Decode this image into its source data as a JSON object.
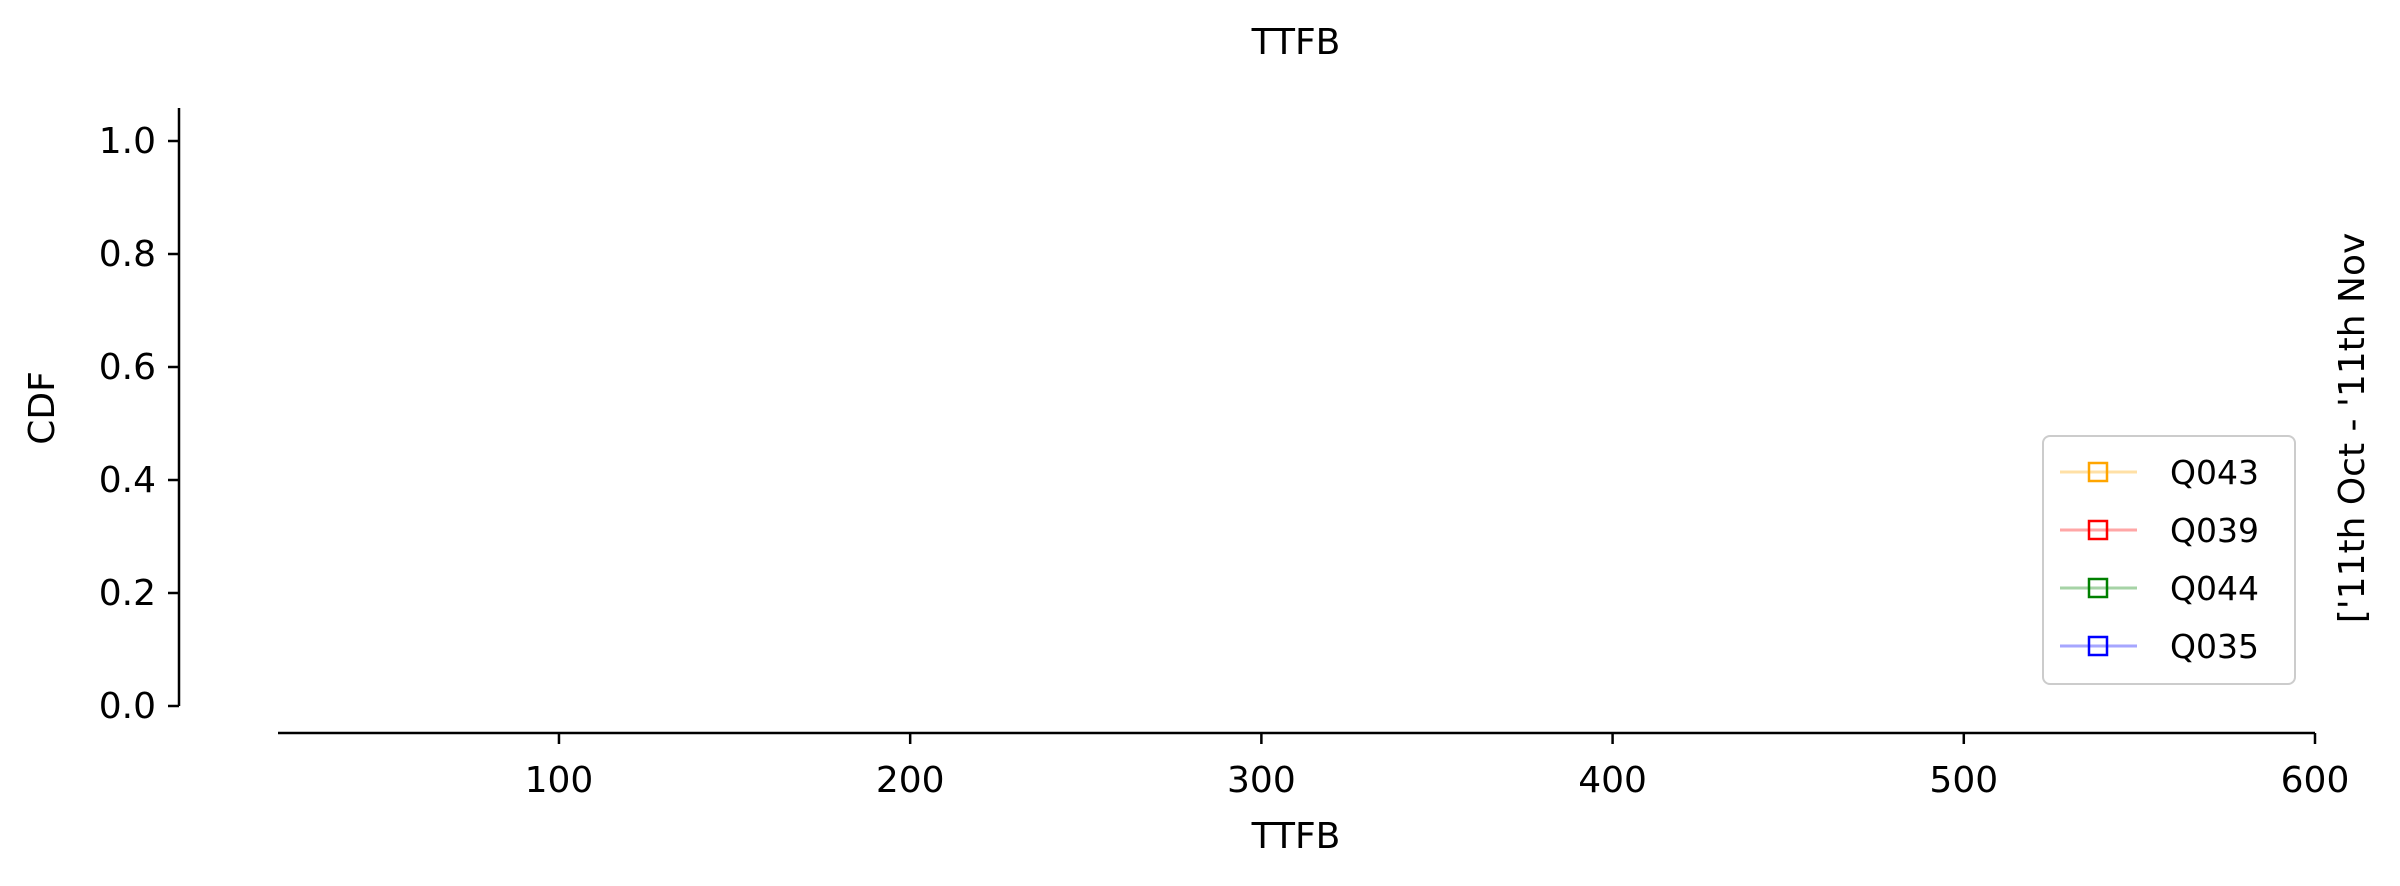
{
  "chart_data": {
    "type": "line",
    "title": "TTFB",
    "xlabel": "TTFB",
    "ylabel": "CDF",
    "right_label": "['11th Oct - '11th Nov",
    "xlim": [
      20,
      600
    ],
    "ylim": [
      0.0,
      1.0
    ],
    "x_ticks": [
      100,
      200,
      300,
      400,
      500,
      600
    ],
    "y_ticks": [
      0.0,
      0.2,
      0.4,
      0.6,
      0.8,
      1.0
    ],
    "x_tick_labels": [
      "100",
      "200",
      "300",
      "400",
      "500",
      "600"
    ],
    "y_tick_labels": [
      "0.0",
      "0.2",
      "0.4",
      "0.6",
      "0.8",
      "1.0"
    ],
    "grid": false,
    "legend_position": "lower-right",
    "marker": "square",
    "series": [
      {
        "name": "Q043",
        "color": "#ffa500",
        "values": []
      },
      {
        "name": "Q039",
        "color": "#ff0000",
        "values": []
      },
      {
        "name": "Q044",
        "color": "#008000",
        "values": []
      },
      {
        "name": "Q035",
        "color": "#0000ff",
        "values": []
      }
    ]
  }
}
